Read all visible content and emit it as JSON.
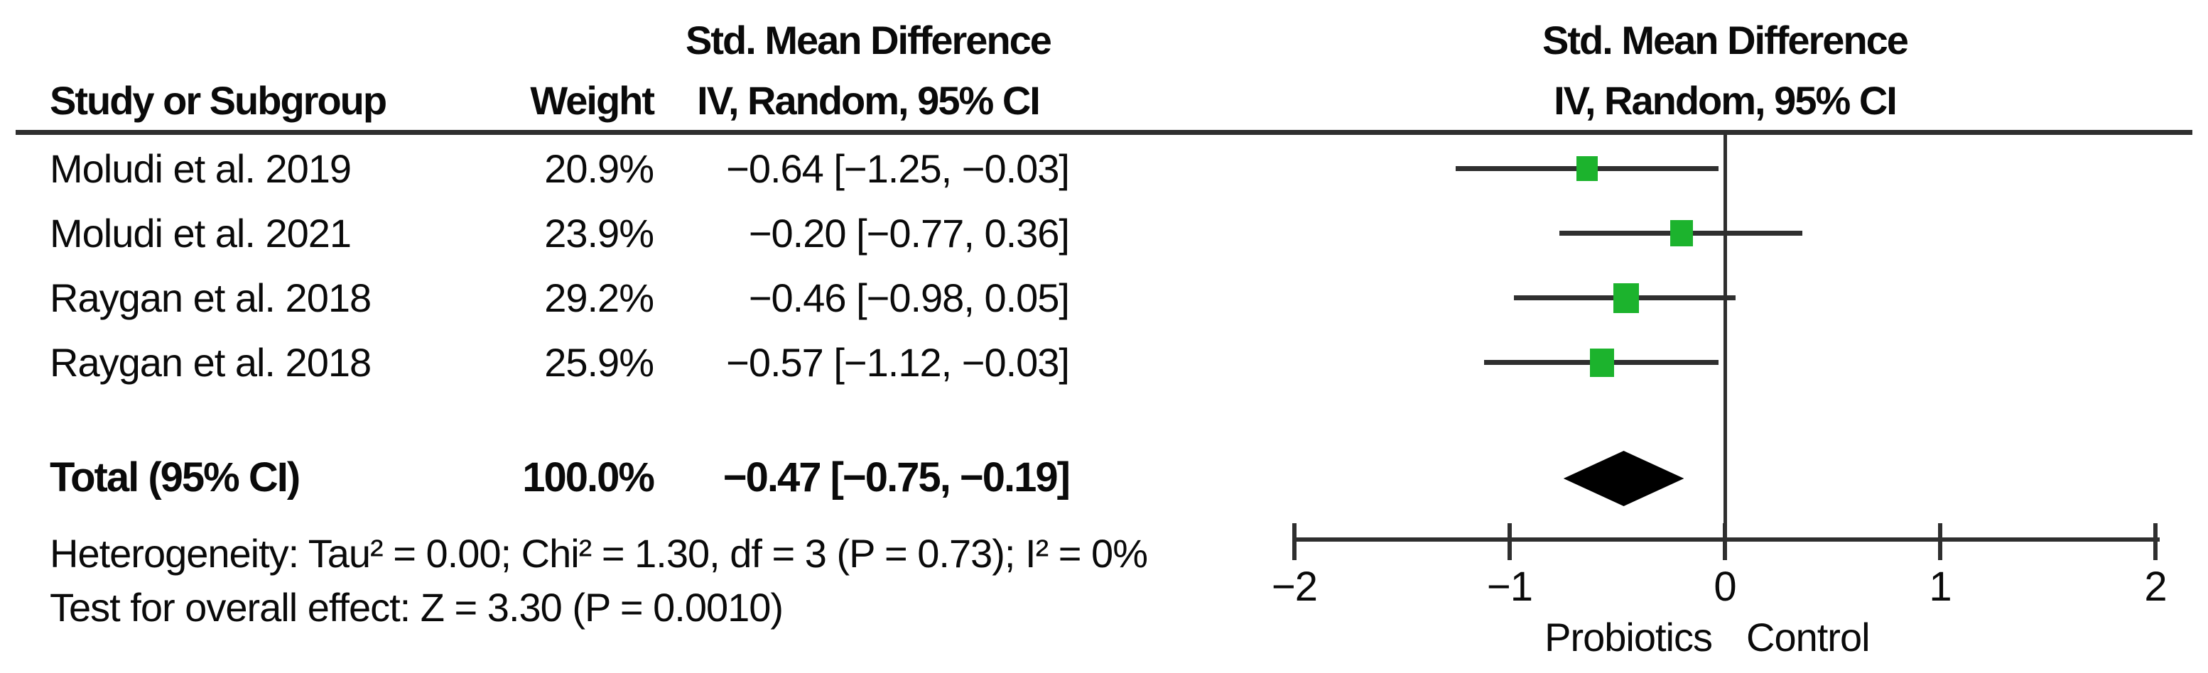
{
  "table": {
    "col1_header": "Study or Subgroup",
    "col2_header": "Weight",
    "effect_header_line1": "Std. Mean Difference",
    "effect_header_line2": "IV, Random, 95% CI",
    "rows": [
      {
        "study": "Moludi et al. 2019",
        "weight": "20.9%",
        "ci_text": "−0.64 [−1.25, −0.03]"
      },
      {
        "study": "Moludi et al. 2021",
        "weight": "23.9%",
        "ci_text": "−0.20 [−0.77, 0.36]"
      },
      {
        "study": "Raygan et al. 2018",
        "weight": "29.2%",
        "ci_text": "−0.46 [−0.98, 0.05]"
      },
      {
        "study": "Raygan et al. 2018",
        "weight": "25.9%",
        "ci_text": "−0.57 [−1.12, −0.03]"
      }
    ],
    "total": {
      "label": "Total (95% CI)",
      "weight": "100.0%",
      "ci_text": "−0.47 [−0.75, −0.19]"
    },
    "heterogeneity_text": "Heterogeneity: Tau² = 0.00; Chi² = 1.30, df = 3 (P = 0.73); I² = 0%",
    "overall_effect_text": "Test for overall effect: Z = 3.30 (P = 0.0010)"
  },
  "plot": {
    "header_line1": "Std. Mean Difference",
    "header_line2": "IV, Random, 95% CI",
    "xlabel_left": "Probiotics",
    "xlabel_right": "Control"
  },
  "chart_data": {
    "type": "forest",
    "effect_measure": "Std. Mean Difference",
    "model": "IV, Random, 95% CI",
    "x_axis": {
      "min": -2,
      "max": 2,
      "ticks": [
        -2,
        -1,
        0,
        1,
        2
      ],
      "tick_labels": [
        "−2",
        "−1",
        "0",
        "1",
        "2"
      ],
      "label_left": "Probiotics",
      "label_right": "Control"
    },
    "studies": [
      {
        "name": "Moludi et al. 2019",
        "weight_pct": 20.9,
        "smd": -0.64,
        "ci_lower": -1.25,
        "ci_upper": -0.03
      },
      {
        "name": "Moludi et al. 2021",
        "weight_pct": 23.9,
        "smd": -0.2,
        "ci_lower": -0.77,
        "ci_upper": 0.36
      },
      {
        "name": "Raygan et al. 2018",
        "weight_pct": 29.2,
        "smd": -0.46,
        "ci_lower": -0.98,
        "ci_upper": 0.05
      },
      {
        "name": "Raygan et al. 2018",
        "weight_pct": 25.9,
        "smd": -0.57,
        "ci_lower": -1.12,
        "ci_upper": -0.03
      }
    ],
    "total": {
      "name": "Total (95% CI)",
      "weight_pct": 100.0,
      "smd": -0.47,
      "ci_lower": -0.75,
      "ci_upper": -0.19
    },
    "heterogeneity": {
      "tau2": 0.0,
      "chi2": 1.3,
      "df": 3,
      "p": 0.73,
      "i2_pct": 0
    },
    "overall_effect": {
      "z": 3.3,
      "p": 0.001
    },
    "marker_color": "#1cb32d",
    "line_color": "#2f2f2f",
    "legend_position": "none",
    "grid": false
  }
}
